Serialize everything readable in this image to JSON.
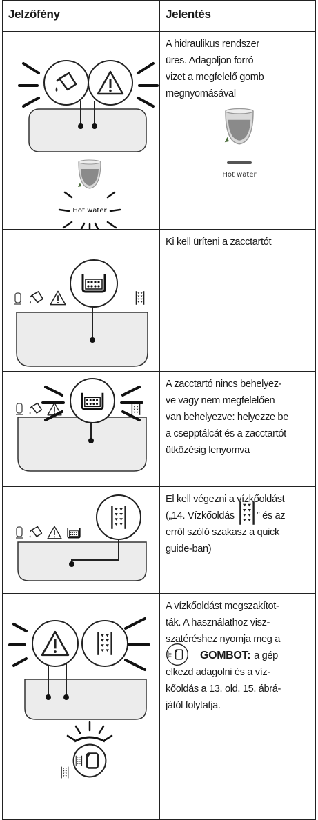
{
  "table": {
    "headers": [
      "Jelzőfény",
      "Jelentés"
    ],
    "rows": [
      {
        "figure_label": "Hot water",
        "meaning_label": "Hot water",
        "lines": [
          "A hidraulikus rendszer",
          "üres. Adagoljon forró",
          "vizet a megfelelő gomb",
          "megnyomásával"
        ]
      },
      {
        "lines": [
          "Ki kell üríteni a zacctartót"
        ]
      },
      {
        "lines": [
          "A zacctartó nincs behelyez-",
          "ve vagy nem megfelelően",
          "van behelyezve: helyezze be",
          "a csepptálcát és a zacctartót",
          "ütközésig lenyomva"
        ]
      },
      {
        "lines": [
          "El kell végezni a vízkőoldást",
          {
            "before": "(„14. Vízkőoldás",
            "after": "” és az"
          },
          "erről szóló szakasz a quick",
          "guide-ban)"
        ]
      },
      {
        "lines": [
          "A vízkőoldást megszakítot-",
          "ták. A használathoz visz-",
          "szatéréshez nyomja meg a",
          {
            "bold": "GOMBOT:",
            "after": "a gép"
          },
          "elkezd adagolni és a víz-",
          "kőoldás a 13. old. 15. ábrá-",
          "jától folytatja."
        ]
      }
    ]
  }
}
